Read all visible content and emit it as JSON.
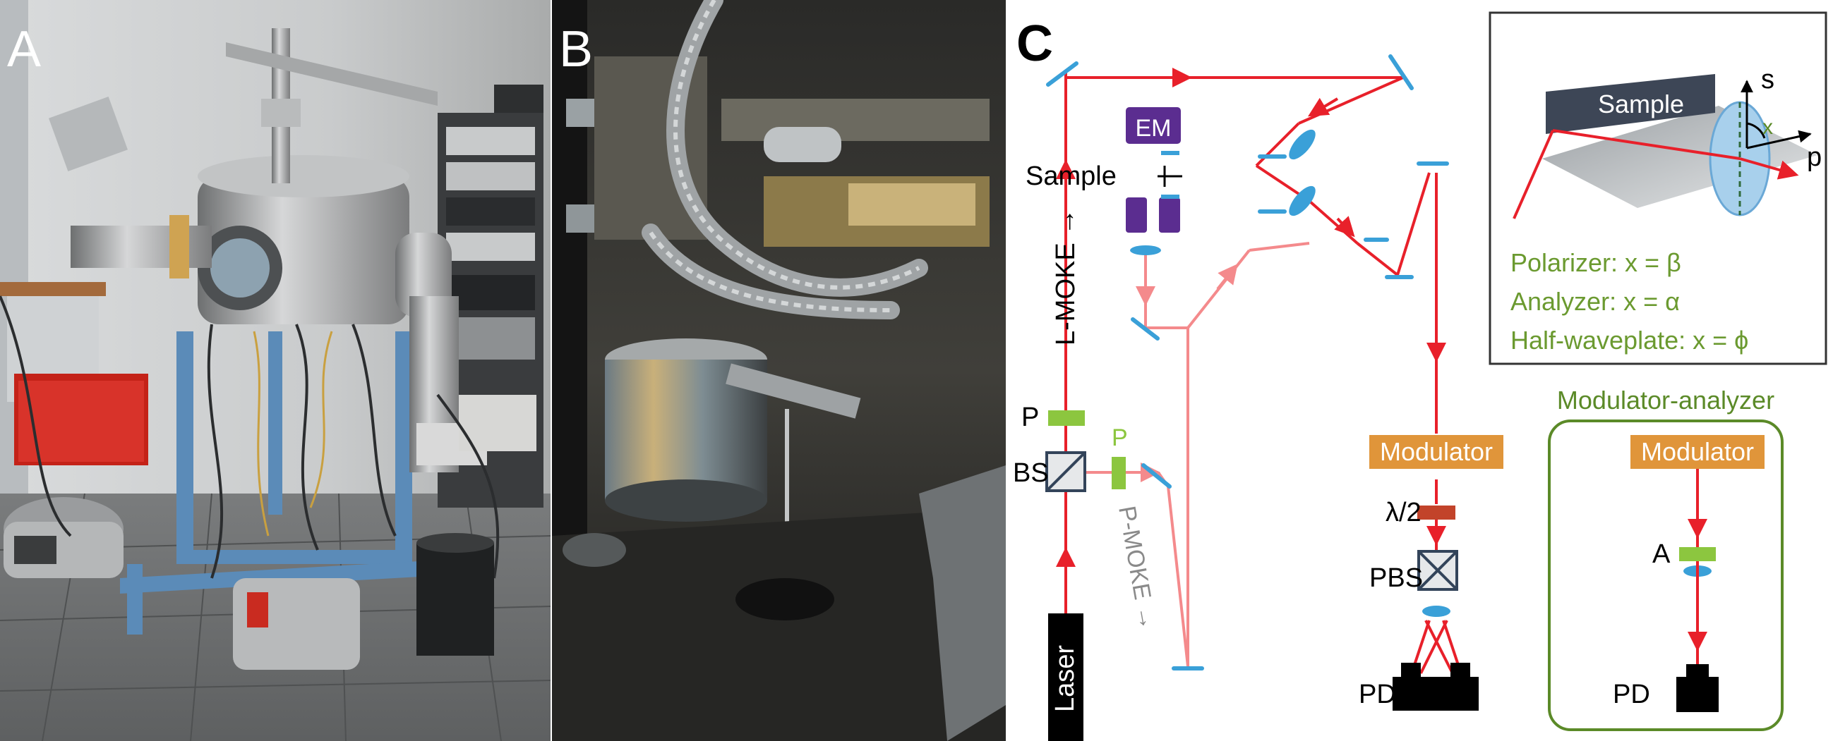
{
  "panels": {
    "a": {
      "label": "A"
    },
    "b": {
      "label": "B"
    },
    "c": {
      "label": "C"
    }
  },
  "setup": {
    "laser": "Laser",
    "l_moke": "L-MOKE →",
    "p_moke": "P-MOKE →",
    "polarizer_p1": "P",
    "polarizer_p2": "P",
    "beamsplitter": "BS",
    "em": "EM",
    "sample": "Sample",
    "modulator": "Modulator",
    "half_wave": "λ/2",
    "pbs": "PBS",
    "pd": "PD"
  },
  "inset": {
    "sample": "Sample",
    "s_axis": "s",
    "p_axis": "p",
    "angle": "x",
    "polarizer_line": "Polarizer: x = β",
    "analyzer_line": "Analyzer: x = α",
    "halfwave_line": "Half-waveplate: x = ϕ"
  },
  "modulator_analyzer": {
    "title": "Modulator-analyzer",
    "modulator": "Modulator",
    "analyzer": "A",
    "pd": "PD"
  },
  "colors": {
    "beam": "#e8202a",
    "beam_light": "#f48a8c",
    "component_green": "#8cc63f",
    "modulator_orange": "#e0953a",
    "em_purple": "#5b2d90",
    "mirror_blue": "#3aa0d8",
    "box_outline": "#5b8a28"
  }
}
